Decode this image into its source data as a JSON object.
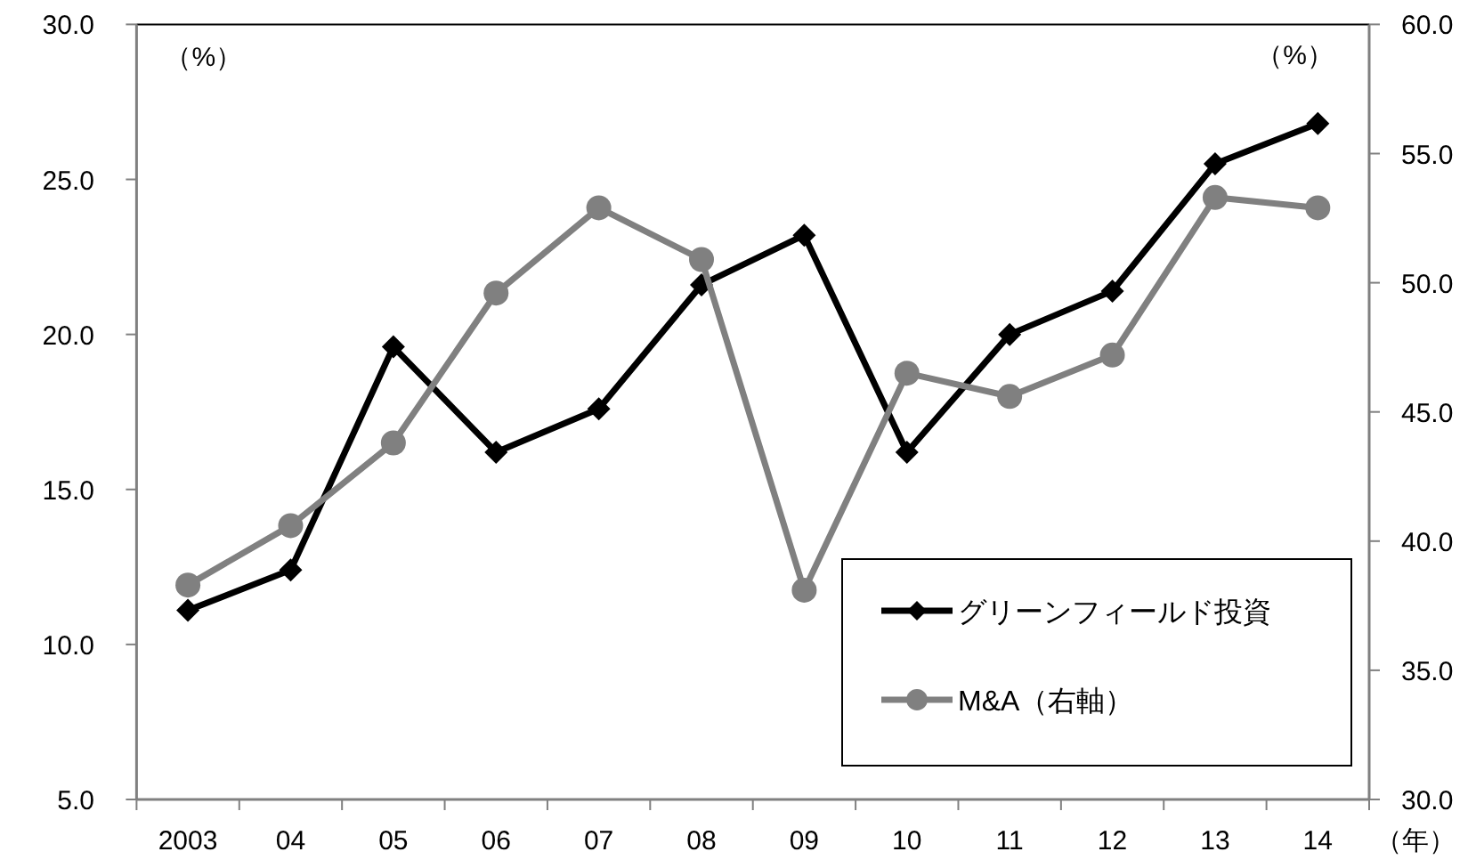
{
  "chart_data": {
    "type": "line",
    "categories": [
      "2003",
      "04",
      "05",
      "06",
      "07",
      "08",
      "09",
      "10",
      "11",
      "12",
      "13",
      "14"
    ],
    "xlabel": "（年）",
    "ylabel": "（%）",
    "y2label": "（%）",
    "ylim": [
      5,
      30
    ],
    "yticks": [
      {
        "value": 5,
        "label": "5.0"
      },
      {
        "value": 10,
        "label": "10.0"
      },
      {
        "value": 15,
        "label": "15.0"
      },
      {
        "value": 20,
        "label": "20.0"
      },
      {
        "value": 25,
        "label": "25.0"
      },
      {
        "value": 30,
        "label": "30.0"
      }
    ],
    "y2lim": [
      30,
      60
    ],
    "y2ticks": [
      {
        "value": 30,
        "label": "30.0"
      },
      {
        "value": 35,
        "label": "35.0"
      },
      {
        "value": 40,
        "label": "40.0"
      },
      {
        "value": 45,
        "label": "45.0"
      },
      {
        "value": 50,
        "label": "50.0"
      },
      {
        "value": 55,
        "label": "55.0"
      },
      {
        "value": 60,
        "label": "60.0"
      }
    ],
    "legend": "bottom right",
    "series": [
      {
        "name": "グリーンフィールド投資",
        "color": "#000000",
        "marker": "diamond",
        "values": [
          11.1,
          12.4,
          19.6,
          16.2,
          17.6,
          21.6,
          23.2,
          16.2,
          20.0,
          21.4,
          25.5,
          26.8
        ]
      },
      {
        "name": "M&A（右軸）",
        "color": "#808080",
        "marker": "circle",
        "axis": "y2",
        "values": [
          38.3,
          40.6,
          43.8,
          49.6,
          52.9,
          50.9,
          38.1,
          46.5,
          45.6,
          47.2,
          53.3,
          52.9
        ]
      }
    ]
  }
}
